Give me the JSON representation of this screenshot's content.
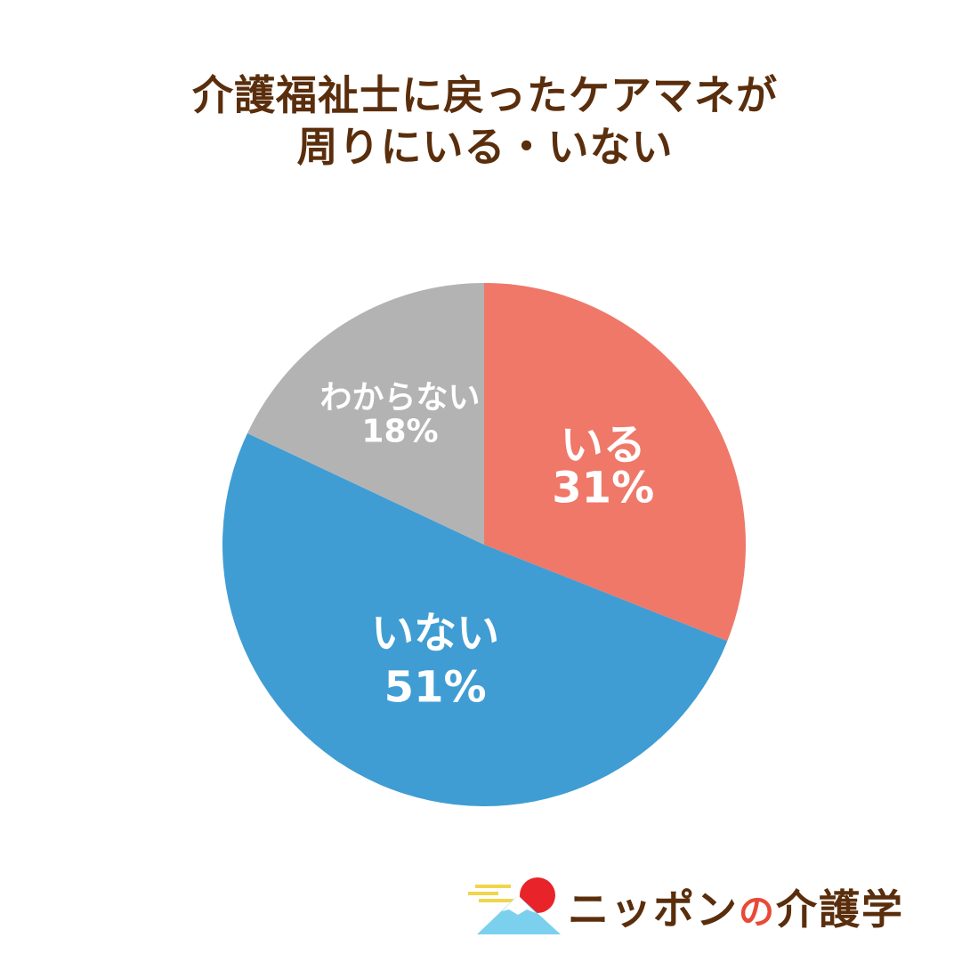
{
  "title": {
    "line1": "介護福祉士に戻ったケアマネが",
    "line2": "周りにいる・いない"
  },
  "chart_data": {
    "type": "pie",
    "start_angle_deg": 0,
    "direction": "clockwise",
    "slices": [
      {
        "name": "いる",
        "value": 31,
        "label": "31%",
        "color": "#ef7869"
      },
      {
        "name": "いない",
        "value": 51,
        "label": "51%",
        "color": "#3f9dd3"
      },
      {
        "name": "わからない",
        "value": 18,
        "label": "18%",
        "color": "#b4b3b3"
      }
    ]
  },
  "logo": {
    "text_main": "ニッポン",
    "text_no": "の",
    "text_end": "介護学",
    "sun_color": "#e8232a",
    "mountain_color": "#7bd0ee",
    "cloud_color": "#f0d64a"
  }
}
